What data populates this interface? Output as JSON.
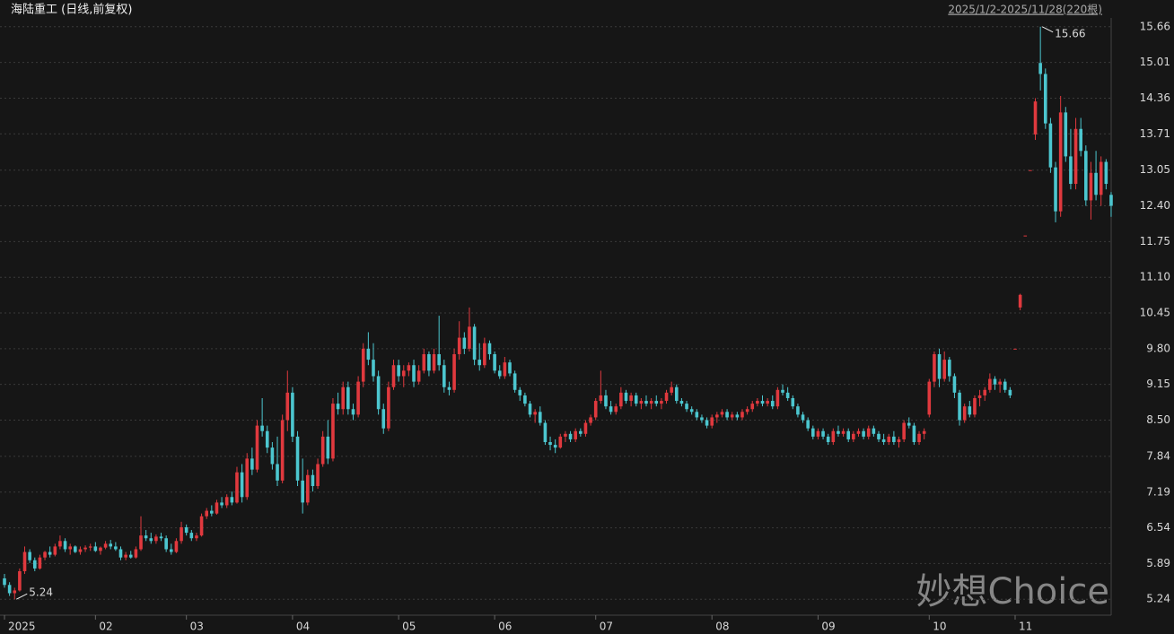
{
  "chart_data": {
    "type": "candlestick",
    "title": "海陆重工 (日线,前复权)",
    "subtitle": "2025/1/2-2025/11/28(220根)",
    "watermark": "妙想Choice",
    "up_color": "#e0393e",
    "down_color": "#4cc6cf",
    "grid": true,
    "ylim": [
      4.95,
      15.82
    ],
    "yticks": [
      5.24,
      5.89,
      6.54,
      7.19,
      7.84,
      {
        "value": 8.5,
        "label": "8.50"
      },
      9.15,
      {
        "value": 9.8,
        "label": "9.80"
      },
      10.45,
      {
        "value": 11.1,
        "label": "11.10"
      },
      11.75,
      {
        "value": 12.4,
        "label": "12.40"
      },
      13.05,
      13.71,
      14.36,
      15.01,
      15.66
    ],
    "categories": [
      "2025",
      null,
      null,
      null,
      null,
      null,
      null,
      null,
      null,
      null,
      null,
      null,
      null,
      null,
      null,
      null,
      null,
      null,
      "02",
      null,
      null,
      null,
      null,
      null,
      null,
      null,
      null,
      null,
      null,
      null,
      null,
      null,
      null,
      null,
      null,
      null,
      "03",
      null,
      null,
      null,
      null,
      null,
      null,
      null,
      null,
      null,
      null,
      null,
      null,
      null,
      null,
      null,
      null,
      null,
      null,
      null,
      null,
      "04",
      null,
      null,
      null,
      null,
      null,
      null,
      null,
      null,
      null,
      null,
      null,
      null,
      null,
      null,
      null,
      null,
      null,
      null,
      null,
      null,
      "05",
      null,
      null,
      null,
      null,
      null,
      null,
      null,
      null,
      null,
      null,
      null,
      null,
      null,
      null,
      null,
      null,
      null,
      null,
      "06",
      null,
      null,
      null,
      null,
      null,
      null,
      null,
      null,
      null,
      null,
      null,
      null,
      null,
      null,
      null,
      null,
      null,
      null,
      null,
      "07",
      null,
      null,
      null,
      null,
      null,
      null,
      null,
      null,
      null,
      null,
      null,
      null,
      null,
      null,
      null,
      null,
      null,
      null,
      null,
      null,
      null,
      null,
      "08",
      null,
      null,
      null,
      null,
      null,
      null,
      null,
      null,
      null,
      null,
      null,
      null,
      null,
      null,
      null,
      null,
      null,
      null,
      null,
      null,
      "09",
      null,
      null,
      null,
      null,
      null,
      null,
      null,
      null,
      null,
      null,
      null,
      null,
      null,
      null,
      null,
      null,
      null,
      null,
      null,
      null,
      null,
      "10",
      null,
      null,
      null,
      null,
      null,
      null,
      null,
      null,
      null,
      null,
      null,
      null,
      null,
      null,
      null,
      null,
      "11",
      null,
      null,
      null,
      null,
      null,
      null,
      null,
      null,
      null,
      null,
      null,
      null,
      null,
      null,
      null,
      null,
      null,
      null,
      null
    ],
    "ohlc": [
      [
        5.62,
        5.7,
        5.45,
        5.5
      ],
      [
        5.5,
        5.55,
        5.3,
        5.35
      ],
      [
        5.35,
        5.45,
        5.24,
        5.4
      ],
      [
        5.4,
        5.8,
        5.38,
        5.75
      ],
      [
        5.75,
        6.2,
        5.7,
        6.1
      ],
      [
        6.1,
        6.15,
        5.9,
        5.95
      ],
      [
        5.95,
        6.0,
        5.75,
        5.8
      ],
      [
        5.8,
        6.05,
        5.78,
        6.0
      ],
      [
        6.0,
        6.12,
        5.95,
        6.1
      ],
      [
        6.1,
        6.2,
        6.0,
        6.05
      ],
      [
        6.05,
        6.25,
        6.02,
        6.2
      ],
      [
        6.2,
        6.4,
        6.15,
        6.3
      ],
      [
        6.3,
        6.35,
        6.1,
        6.15
      ],
      [
        6.15,
        6.25,
        6.05,
        6.2
      ],
      [
        6.2,
        6.22,
        6.08,
        6.1
      ],
      [
        6.1,
        6.2,
        6.05,
        6.15
      ],
      [
        6.15,
        6.22,
        6.1,
        6.18
      ],
      [
        6.18,
        6.25,
        6.12,
        6.2
      ],
      [
        6.2,
        6.28,
        6.1,
        6.12
      ],
      [
        6.12,
        6.2,
        6.05,
        6.18
      ],
      [
        6.18,
        6.3,
        6.15,
        6.25
      ],
      [
        6.25,
        6.32,
        6.15,
        6.2
      ],
      [
        6.2,
        6.28,
        6.12,
        6.15
      ],
      [
        6.15,
        6.2,
        5.95,
        6.0
      ],
      [
        6.0,
        6.1,
        5.95,
        6.05
      ],
      [
        6.05,
        6.12,
        5.98,
        6.0
      ],
      [
        6.0,
        6.2,
        5.98,
        6.15
      ],
      [
        6.15,
        6.75,
        6.12,
        6.4
      ],
      [
        6.4,
        6.5,
        6.3,
        6.35
      ],
      [
        6.35,
        6.45,
        6.25,
        6.3
      ],
      [
        6.3,
        6.42,
        6.25,
        6.38
      ],
      [
        6.38,
        6.45,
        6.3,
        6.35
      ],
      [
        6.35,
        6.4,
        6.1,
        6.15
      ],
      [
        6.15,
        6.25,
        6.05,
        6.1
      ],
      [
        6.1,
        6.35,
        6.08,
        6.3
      ],
      [
        6.3,
        6.65,
        6.25,
        6.55
      ],
      [
        6.55,
        6.6,
        6.4,
        6.45
      ],
      [
        6.45,
        6.5,
        6.3,
        6.35
      ],
      [
        6.35,
        6.45,
        6.3,
        6.4
      ],
      [
        6.4,
        6.8,
        6.38,
        6.75
      ],
      [
        6.75,
        6.9,
        6.7,
        6.85
      ],
      [
        6.85,
        6.95,
        6.75,
        6.8
      ],
      [
        6.8,
        7.05,
        6.78,
        7.0
      ],
      [
        7.0,
        7.1,
        6.9,
        6.95
      ],
      [
        6.95,
        7.15,
        6.9,
        7.1
      ],
      [
        7.1,
        7.2,
        6.95,
        7.0
      ],
      [
        7.0,
        7.65,
        6.98,
        7.55
      ],
      [
        7.55,
        7.7,
        7.0,
        7.1
      ],
      [
        7.1,
        7.9,
        7.05,
        7.8
      ],
      [
        7.8,
        8.0,
        7.5,
        7.6
      ],
      [
        7.6,
        8.5,
        7.55,
        8.4
      ],
      [
        8.4,
        8.9,
        8.2,
        8.3
      ],
      [
        8.3,
        8.4,
        7.9,
        8.0
      ],
      [
        8.0,
        8.1,
        7.6,
        7.7
      ],
      [
        7.7,
        8.2,
        7.3,
        7.4
      ],
      [
        7.4,
        8.6,
        7.35,
        8.5
      ],
      [
        8.5,
        9.4,
        8.3,
        9.0
      ],
      [
        9.0,
        9.1,
        8.1,
        8.2
      ],
      [
        8.2,
        8.3,
        7.3,
        7.4
      ],
      [
        7.4,
        7.8,
        6.8,
        7.0
      ],
      [
        7.0,
        7.6,
        6.95,
        7.5
      ],
      [
        7.5,
        7.6,
        7.2,
        7.3
      ],
      [
        7.3,
        7.8,
        7.25,
        7.7
      ],
      [
        7.7,
        8.3,
        7.65,
        8.2
      ],
      [
        8.2,
        8.5,
        7.7,
        7.8
      ],
      [
        7.8,
        8.9,
        7.75,
        8.8
      ],
      [
        8.8,
        9.0,
        8.6,
        8.7
      ],
      [
        8.7,
        9.2,
        8.6,
        9.1
      ],
      [
        9.1,
        9.2,
        8.6,
        8.7
      ],
      [
        8.7,
        8.8,
        8.5,
        8.6
      ],
      [
        8.6,
        9.3,
        8.55,
        9.2
      ],
      [
        9.2,
        9.9,
        9.1,
        9.8
      ],
      [
        9.8,
        10.1,
        9.5,
        9.6
      ],
      [
        9.6,
        9.9,
        9.2,
        9.3
      ],
      [
        9.3,
        9.4,
        8.6,
        8.7
      ],
      [
        8.7,
        8.8,
        8.25,
        8.35
      ],
      [
        8.35,
        9.2,
        8.3,
        9.1
      ],
      [
        9.1,
        9.6,
        9.05,
        9.5
      ],
      [
        9.5,
        9.6,
        9.2,
        9.3
      ],
      [
        9.3,
        9.5,
        9.1,
        9.4
      ],
      [
        9.4,
        9.55,
        9.3,
        9.5
      ],
      [
        9.5,
        9.6,
        9.1,
        9.2
      ],
      [
        9.2,
        9.5,
        9.15,
        9.4
      ],
      [
        9.4,
        9.8,
        9.35,
        9.7
      ],
      [
        9.7,
        9.75,
        9.3,
        9.4
      ],
      [
        9.4,
        9.8,
        9.35,
        9.7
      ],
      [
        9.7,
        10.4,
        9.4,
        9.5
      ],
      [
        9.5,
        9.6,
        9.0,
        9.1
      ],
      [
        9.1,
        9.2,
        8.95,
        9.05
      ],
      [
        9.05,
        9.8,
        9.0,
        9.7
      ],
      [
        9.7,
        10.3,
        9.6,
        10.0
      ],
      [
        10.0,
        10.1,
        9.7,
        9.8
      ],
      [
        9.8,
        10.55,
        9.75,
        10.2
      ],
      [
        10.2,
        10.25,
        9.5,
        9.6
      ],
      [
        9.6,
        9.9,
        9.4,
        9.5
      ],
      [
        9.5,
        10.0,
        9.45,
        9.9
      ],
      [
        9.9,
        9.95,
        9.6,
        9.7
      ],
      [
        9.7,
        9.75,
        9.35,
        9.4
      ],
      [
        9.4,
        9.5,
        9.25,
        9.3
      ],
      [
        9.3,
        9.65,
        9.25,
        9.55
      ],
      [
        9.55,
        9.6,
        9.3,
        9.35
      ],
      [
        9.35,
        9.4,
        9.0,
        9.05
      ],
      [
        9.05,
        9.1,
        8.85,
        8.95
      ],
      [
        8.95,
        9.0,
        8.75,
        8.8
      ],
      [
        8.8,
        8.85,
        8.55,
        8.6
      ],
      [
        8.6,
        8.7,
        8.45,
        8.65
      ],
      [
        8.65,
        8.75,
        8.4,
        8.45
      ],
      [
        8.45,
        8.5,
        8.05,
        8.1
      ],
      [
        8.1,
        8.2,
        7.95,
        8.05
      ],
      [
        8.05,
        8.15,
        7.9,
        8.0
      ],
      [
        8.0,
        8.25,
        7.98,
        8.2
      ],
      [
        8.2,
        8.3,
        8.1,
        8.25
      ],
      [
        8.25,
        8.3,
        8.1,
        8.15
      ],
      [
        8.15,
        8.35,
        8.1,
        8.3
      ],
      [
        8.3,
        8.35,
        8.2,
        8.25
      ],
      [
        8.25,
        8.5,
        8.2,
        8.45
      ],
      [
        8.45,
        8.6,
        8.4,
        8.55
      ],
      [
        8.55,
        8.9,
        8.5,
        8.85
      ],
      [
        8.85,
        9.4,
        8.8,
        8.95
      ],
      [
        8.95,
        9.05,
        8.7,
        8.75
      ],
      [
        8.75,
        8.85,
        8.6,
        8.65
      ],
      [
        8.65,
        8.8,
        8.6,
        8.75
      ],
      [
        8.75,
        9.1,
        8.7,
        9.0
      ],
      [
        9.0,
        9.05,
        8.8,
        8.85
      ],
      [
        8.85,
        9.0,
        8.75,
        8.95
      ],
      [
        8.95,
        9.0,
        8.75,
        8.8
      ],
      [
        8.8,
        8.9,
        8.7,
        8.85
      ],
      [
        8.85,
        8.95,
        8.75,
        8.8
      ],
      [
        8.8,
        8.9,
        8.7,
        8.85
      ],
      [
        8.85,
        8.95,
        8.75,
        8.8
      ],
      [
        8.8,
        8.9,
        8.7,
        8.85
      ],
      [
        8.85,
        9.05,
        8.8,
        9.0
      ],
      [
        9.0,
        9.2,
        8.95,
        9.1
      ],
      [
        9.1,
        9.15,
        8.8,
        8.85
      ],
      [
        8.85,
        8.9,
        8.75,
        8.8
      ],
      [
        8.8,
        8.85,
        8.65,
        8.7
      ],
      [
        8.7,
        8.75,
        8.6,
        8.65
      ],
      [
        8.65,
        8.7,
        8.5,
        8.55
      ],
      [
        8.55,
        8.6,
        8.45,
        8.5
      ],
      [
        8.5,
        8.55,
        8.35,
        8.4
      ],
      [
        8.4,
        8.6,
        8.35,
        8.55
      ],
      [
        8.55,
        8.65,
        8.45,
        8.6
      ],
      [
        8.6,
        8.7,
        8.55,
        8.65
      ],
      [
        8.65,
        8.7,
        8.5,
        8.55
      ],
      [
        8.55,
        8.65,
        8.5,
        8.6
      ],
      [
        8.6,
        8.65,
        8.5,
        8.55
      ],
      [
        8.55,
        8.7,
        8.5,
        8.65
      ],
      [
        8.65,
        8.75,
        8.6,
        8.7
      ],
      [
        8.7,
        8.85,
        8.65,
        8.8
      ],
      [
        8.8,
        8.9,
        8.75,
        8.85
      ],
      [
        8.85,
        8.95,
        8.75,
        8.8
      ],
      [
        8.8,
        8.9,
        8.75,
        8.85
      ],
      [
        8.85,
        8.95,
        8.7,
        8.75
      ],
      [
        8.75,
        9.1,
        8.7,
        9.05
      ],
      [
        9.05,
        9.15,
        8.95,
        9.0
      ],
      [
        9.0,
        9.1,
        8.85,
        8.9
      ],
      [
        8.9,
        8.95,
        8.7,
        8.75
      ],
      [
        8.75,
        8.8,
        8.55,
        8.6
      ],
      [
        8.6,
        8.65,
        8.45,
        8.5
      ],
      [
        8.5,
        8.55,
        8.3,
        8.35
      ],
      [
        8.35,
        8.4,
        8.15,
        8.2
      ],
      [
        8.2,
        8.35,
        8.15,
        8.3
      ],
      [
        8.3,
        8.35,
        8.15,
        8.2
      ],
      [
        8.2,
        8.25,
        8.05,
        8.1
      ],
      [
        8.1,
        8.35,
        8.05,
        8.3
      ],
      [
        8.3,
        8.4,
        8.2,
        8.25
      ],
      [
        8.25,
        8.35,
        8.2,
        8.3
      ],
      [
        8.3,
        8.35,
        8.1,
        8.15
      ],
      [
        8.15,
        8.3,
        8.1,
        8.25
      ],
      [
        8.25,
        8.35,
        8.2,
        8.3
      ],
      [
        8.3,
        8.35,
        8.15,
        8.2
      ],
      [
        8.2,
        8.4,
        8.15,
        8.35
      ],
      [
        8.35,
        8.4,
        8.2,
        8.25
      ],
      [
        8.25,
        8.3,
        8.1,
        8.15
      ],
      [
        8.15,
        8.25,
        8.05,
        8.1
      ],
      [
        8.1,
        8.25,
        8.05,
        8.2
      ],
      [
        8.2,
        8.3,
        8.05,
        8.1
      ],
      [
        8.1,
        8.2,
        8.0,
        8.15
      ],
      [
        8.15,
        8.5,
        8.1,
        8.45
      ],
      [
        8.45,
        8.55,
        8.35,
        8.4
      ],
      [
        8.4,
        8.45,
        8.05,
        8.1
      ],
      [
        8.1,
        8.3,
        8.05,
        8.25
      ],
      [
        8.25,
        8.35,
        8.15,
        8.3
      ],
      [
        8.6,
        9.25,
        8.55,
        9.2
      ],
      [
        9.2,
        9.75,
        9.1,
        9.7
      ],
      [
        9.7,
        9.8,
        9.1,
        9.25
      ],
      [
        9.25,
        9.75,
        9.2,
        9.6
      ],
      [
        9.6,
        9.65,
        9.2,
        9.3
      ],
      [
        9.3,
        9.35,
        8.9,
        9.0
      ],
      [
        9.0,
        9.05,
        8.4,
        8.5
      ],
      [
        8.5,
        8.8,
        8.45,
        8.75
      ],
      [
        8.75,
        8.85,
        8.55,
        8.6
      ],
      [
        8.6,
        8.95,
        8.55,
        8.9
      ],
      [
        8.9,
        9.05,
        8.75,
        8.95
      ],
      [
        8.95,
        9.1,
        8.85,
        9.05
      ],
      [
        9.05,
        9.35,
        9.0,
        9.25
      ],
      [
        9.25,
        9.3,
        9.05,
        9.15
      ],
      [
        9.15,
        9.25,
        9.0,
        9.2
      ],
      [
        9.2,
        9.25,
        9.0,
        9.05
      ],
      [
        9.05,
        9.1,
        8.9,
        8.95
      ],
      [
        9.8,
        9.8,
        9.8,
        9.8
      ],
      [
        10.55,
        10.8,
        10.5,
        10.78
      ],
      [
        11.86,
        11.86,
        11.86,
        11.86
      ],
      [
        13.05,
        13.05,
        13.05,
        13.05
      ],
      [
        13.7,
        14.36,
        13.6,
        14.3
      ],
      [
        15.0,
        15.66,
        14.5,
        14.8
      ],
      [
        14.8,
        14.9,
        13.8,
        13.9
      ],
      [
        13.9,
        14.0,
        13.0,
        13.1
      ],
      [
        13.1,
        13.2,
        12.1,
        12.3
      ],
      [
        12.3,
        14.4,
        12.2,
        14.1
      ],
      [
        14.1,
        14.2,
        13.2,
        13.3
      ],
      [
        13.3,
        13.8,
        12.7,
        12.8
      ],
      [
        12.8,
        14.0,
        12.7,
        13.8
      ],
      [
        13.8,
        14.0,
        13.3,
        13.4
      ],
      [
        13.4,
        13.5,
        12.4,
        12.5
      ],
      [
        12.5,
        13.2,
        12.15,
        13.0
      ],
      [
        13.0,
        13.4,
        12.5,
        12.6
      ],
      [
        12.6,
        13.3,
        12.4,
        13.2
      ],
      [
        13.2,
        13.25,
        12.7,
        12.8
      ],
      [
        12.6,
        12.65,
        12.2,
        12.4
      ]
    ]
  }
}
